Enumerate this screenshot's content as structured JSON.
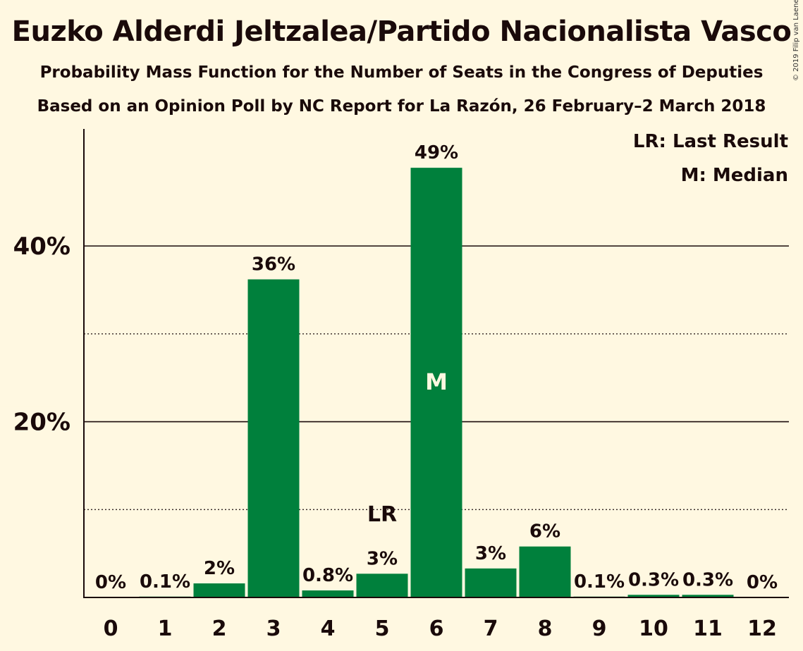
{
  "title": "Euzko Alderdi Jeltzalea/Partido Nacionalista Vasco",
  "subtitle": "Probability Mass Function for the Number of Seats in the Congress of Deputies",
  "subtitle2": "Based on an Opinion Poll by NC Report for La Razón, 26 February–2 March 2018",
  "copyright": "© 2019 Filip van Laenen",
  "legend": {
    "lr": "LR: Last Result",
    "m": "M: Median"
  },
  "colors": {
    "bar": "#00803C",
    "background": "#FFF8E1",
    "text": "#1a0a0a"
  },
  "chart_data": {
    "type": "bar",
    "categories": [
      "0",
      "1",
      "2",
      "3",
      "4",
      "5",
      "6",
      "7",
      "8",
      "9",
      "10",
      "11",
      "12"
    ],
    "values": [
      0,
      0.1,
      1.6,
      36.2,
      0.8,
      2.7,
      48.9,
      3.3,
      5.8,
      0.1,
      0.3,
      0.3,
      0
    ],
    "data_labels": [
      "0%",
      "0.1%",
      "2%",
      "36%",
      "0.8%",
      "3%",
      "49%",
      "3%",
      "6%",
      "0.1%",
      "0.3%",
      "0.3%",
      "0%"
    ],
    "ylim": [
      0,
      53
    ],
    "yticks": [
      {
        "value": 20,
        "label": "20%"
      },
      {
        "value": 40,
        "label": "40%"
      }
    ],
    "minor_gridlines": [
      10,
      30
    ],
    "last_result": {
      "category": "5",
      "label": "LR"
    },
    "median": {
      "category": "6",
      "label": "M"
    },
    "xlabel": "",
    "ylabel": ""
  }
}
